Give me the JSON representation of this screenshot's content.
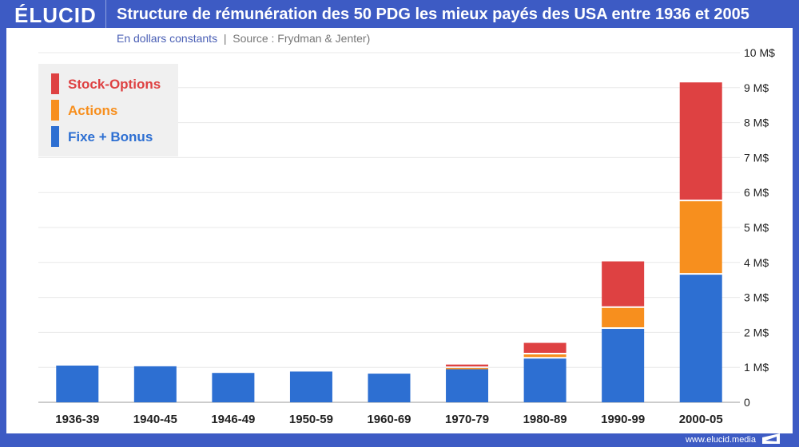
{
  "header": {
    "logo": "ÉLUCID",
    "title": "Structure de rémunération des 50 PDG les mieux payés des USA entre 1936 et 2005"
  },
  "subtitle": {
    "main": "En dollars constants",
    "source": "Source : Frydman & Jenter)"
  },
  "footer": {
    "url": "www.elucid.media"
  },
  "chart_data": {
    "type": "bar",
    "stacked": true,
    "categories": [
      "1936-39",
      "1940-45",
      "1946-49",
      "1950-59",
      "1960-69",
      "1970-79",
      "1980-89",
      "1990-99",
      "2000-05"
    ],
    "series": [
      {
        "name": "Fixe + Bonus",
        "color": "#2d6fd2",
        "values": [
          1.05,
          1.03,
          0.84,
          0.88,
          0.82,
          0.95,
          1.25,
          2.1,
          3.65
        ]
      },
      {
        "name": "Actions",
        "color": "#f78f1e",
        "values": [
          0,
          0,
          0,
          0,
          0,
          0.03,
          0.12,
          0.6,
          2.1
        ]
      },
      {
        "name": "Stock-Options",
        "color": "#de4142",
        "values": [
          0,
          0,
          0,
          0,
          0,
          0.1,
          0.33,
          1.33,
          3.4
        ]
      }
    ],
    "ylim": [
      0,
      10
    ],
    "yticks": [
      "0",
      "1 M$",
      "2 M$",
      "3 M$",
      "4 M$",
      "5 M$",
      "6 M$",
      "7 M$",
      "8 M$",
      "9 M$",
      "10 M$"
    ],
    "yaxis_position": "right",
    "grid": true,
    "legend": {
      "position": "top-left",
      "entries": [
        "Stock-Options",
        "Actions",
        "Fixe + Bonus"
      ]
    }
  }
}
